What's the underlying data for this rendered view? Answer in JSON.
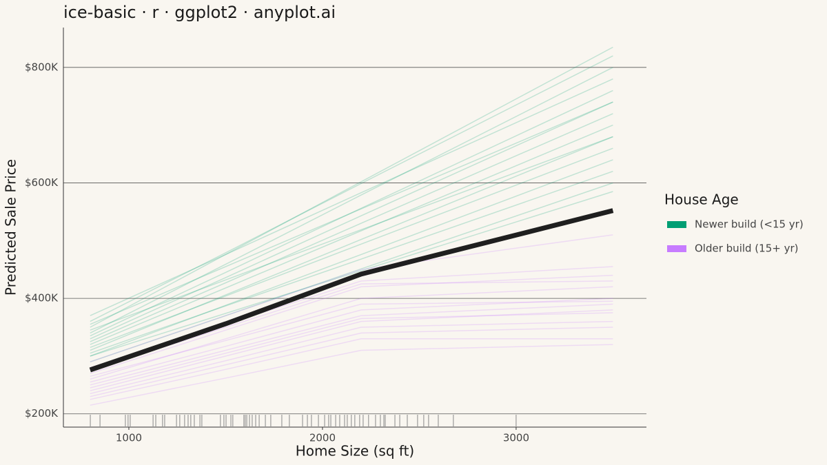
{
  "chart_data": {
    "type": "ice",
    "title": "ice-basic · r · ggplot2 · anyplot.ai",
    "x_label": "Home Size (sq ft)",
    "y_label": "Predicted Sale Price",
    "legend_title": "House Age",
    "legend_position": "right",
    "grid": "y",
    "xlim": [
      662,
      3673
    ],
    "xticks": [
      1000,
      2000,
      3000
    ],
    "ylim": [
      177000,
      869000
    ],
    "yticks": [
      {
        "value": 200000,
        "label": "$200K"
      },
      {
        "value": 400000,
        "label": "$400K"
      },
      {
        "value": 600000,
        "label": "$600K"
      },
      {
        "value": 800000,
        "label": "$800K"
      }
    ],
    "x": [
      800,
      1500,
      2200,
      3500
    ],
    "series": [
      {
        "name": "Newer build (<15 yr)",
        "color": "#009E73",
        "lines": [
          [
            290000,
            370000,
            451000,
            600000
          ],
          [
            300000,
            388000,
            476000,
            640000
          ],
          [
            310000,
            406000,
            502000,
            680000
          ],
          [
            320000,
            418000,
            517000,
            700000
          ],
          [
            330000,
            436000,
            543000,
            740000
          ],
          [
            335000,
            445000,
            556000,
            760000
          ],
          [
            340000,
            459000,
            579000,
            800000
          ],
          [
            350000,
            476000,
            602000,
            835000
          ],
          [
            360000,
            479000,
            599000,
            820000
          ],
          [
            370000,
            476000,
            583000,
            780000
          ],
          [
            315000,
            404000,
            494000,
            660000
          ],
          [
            305000,
            387000,
            468000,
            620000
          ],
          [
            325000,
            427000,
            530000,
            720000
          ],
          [
            345000,
            432000,
            519000,
            680000
          ],
          [
            300000,
            374000,
            448000,
            585000
          ],
          [
            355000,
            455000,
            555000,
            740000
          ]
        ]
      },
      {
        "name": "Older build (15+ yr)",
        "color": "#C77CFF",
        "lines": [
          [
            215000,
            262000,
            310000,
            320000
          ],
          [
            225000,
            277000,
            330000,
            330000
          ],
          [
            235000,
            292000,
            350000,
            360000
          ],
          [
            240000,
            300000,
            360000,
            380000
          ],
          [
            250000,
            310000,
            370000,
            390000
          ],
          [
            255000,
            317000,
            380000,
            400000
          ],
          [
            260000,
            330000,
            400000,
            420000
          ],
          [
            270000,
            345000,
            420000,
            440000
          ],
          [
            280000,
            355000,
            430000,
            455000
          ],
          [
            290000,
            370000,
            450000,
            510000
          ],
          [
            230000,
            285000,
            340000,
            350000
          ],
          [
            265000,
            327000,
            390000,
            395000
          ],
          [
            245000,
            305000,
            365000,
            375000
          ],
          [
            275000,
            350000,
            425000,
            430000
          ]
        ]
      }
    ],
    "average": {
      "color": "#1f1f1f",
      "values": [
        276000,
        356000,
        442000,
        552000
      ]
    },
    "rug": {
      "color": "#888888",
      "values": [
        801,
        851,
        982,
        996,
        1007,
        1125,
        1139,
        1174,
        1185,
        1246,
        1263,
        1288,
        1306,
        1320,
        1338,
        1367,
        1377,
        1473,
        1491,
        1502,
        1527,
        1537,
        1594,
        1601,
        1609,
        1623,
        1637,
        1655,
        1673,
        1705,
        1733,
        1790,
        1829,
        1897,
        1922,
        1943,
        1979,
        2011,
        2032,
        2043,
        2068,
        2089,
        2114,
        2128,
        2149,
        2167,
        2192,
        2210,
        2238,
        2274,
        2299,
        2317,
        2324,
        2374,
        2399,
        2438,
        2491,
        2523,
        2548,
        2598,
        2676,
        3000
      ]
    }
  }
}
